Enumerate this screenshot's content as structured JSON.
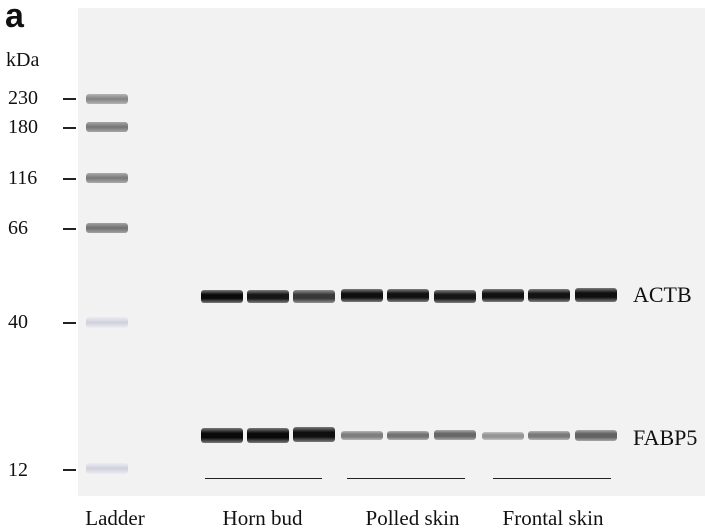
{
  "panel_label": "a",
  "unit": "kDa",
  "ladder": {
    "label": "Ladder",
    "markers": [
      {
        "kda": "230",
        "intensity": 0.62
      },
      {
        "kda": "180",
        "intensity": 0.7
      },
      {
        "kda": "116",
        "intensity": 0.68
      },
      {
        "kda": "66",
        "intensity": 0.72
      },
      {
        "kda": "40",
        "intensity": 0.22
      },
      {
        "kda": "12",
        "intensity": 0.22
      }
    ]
  },
  "targets": [
    {
      "label": "ACTB",
      "intensities": [
        1.0,
        0.95,
        0.8,
        0.98,
        0.97,
        0.95,
        0.97,
        0.96,
        0.98
      ]
    },
    {
      "label": "FABP5",
      "intensities": [
        1.0,
        1.0,
        0.98,
        0.5,
        0.55,
        0.6,
        0.4,
        0.52,
        0.62
      ]
    }
  ],
  "groups": [
    {
      "label": "Horn bud"
    },
    {
      "label": "Polled skin"
    },
    {
      "label": "Frontal skin"
    }
  ]
}
